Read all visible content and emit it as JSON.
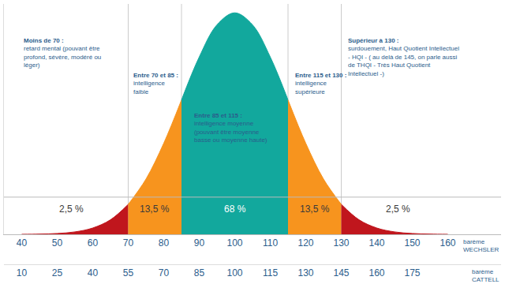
{
  "chart_data": {
    "type": "area",
    "x": [
      40,
      45,
      50,
      55,
      60,
      65,
      70,
      75,
      80,
      85,
      90,
      95,
      100,
      105,
      110,
      115,
      120,
      125,
      130,
      135,
      140,
      145,
      150,
      155,
      160
    ],
    "values": [
      0.0003,
      0.0012,
      0.0039,
      0.0111,
      0.0286,
      0.0657,
      0.1353,
      0.2494,
      0.4111,
      0.6065,
      0.8007,
      0.946,
      1,
      0.946,
      0.8007,
      0.6065,
      0.4111,
      0.2494,
      0.1353,
      0.0657,
      0.0286,
      0.0111,
      0.0039,
      0.0012,
      0.0003
    ],
    "xlim": [
      35,
      175
    ],
    "xticks": [
      40,
      50,
      60,
      70,
      80,
      90,
      100,
      110,
      120,
      130,
      140,
      150,
      160
    ],
    "x_label": "barème WECHSLER",
    "x2lim": [
      2.5,
      212.5
    ],
    "x2ticks": [
      10,
      25,
      40,
      55,
      70,
      85,
      100,
      115,
      130,
      145,
      160,
      175
    ],
    "x2_label": "barème CATTELL",
    "ylim": [
      0,
      1.04
    ],
    "yticks": [],
    "tick_labels": "x",
    "grid": false,
    "bands": [
      {
        "from": 40,
        "to": 70,
        "color": "#c0161d",
        "title": "Moins de 70 :",
        "text": "retard mental (pouvant être profond, sévère, modéré ou léger)",
        "share": 2.5,
        "share_label": "2,5 %"
      },
      {
        "from": 70,
        "to": 85,
        "color": "#f7941e",
        "title": "Entre 70 et 85 :",
        "text": "intelligence faible",
        "share": 13.5,
        "share_label": "13,5 %"
      },
      {
        "from": 85,
        "to": 115,
        "color": "#12a89d",
        "title": "Entre 85 et 115 :",
        "text": "intelligence moyenne (pouvant être moyenne basse ou moyenne haute)",
        "share": 68,
        "share_label": "68 %"
      },
      {
        "from": 115,
        "to": 130,
        "color": "#f7941e",
        "title": "Entre 115 et 130 :",
        "text": "intelligence supérieure",
        "share": 13.5,
        "share_label": "13,5 %"
      },
      {
        "from": 130,
        "to": 160,
        "color": "#c0161d",
        "title": "Supérieur à 130 :",
        "text": "surdouement, Haut Quotient Intellectuel - HQI - ( au delà de 145, on parle aussi de THQI - Très Haut Quotient Intellectuel -)",
        "share": 2.5,
        "share_label": "2,5 %"
      }
    ]
  }
}
